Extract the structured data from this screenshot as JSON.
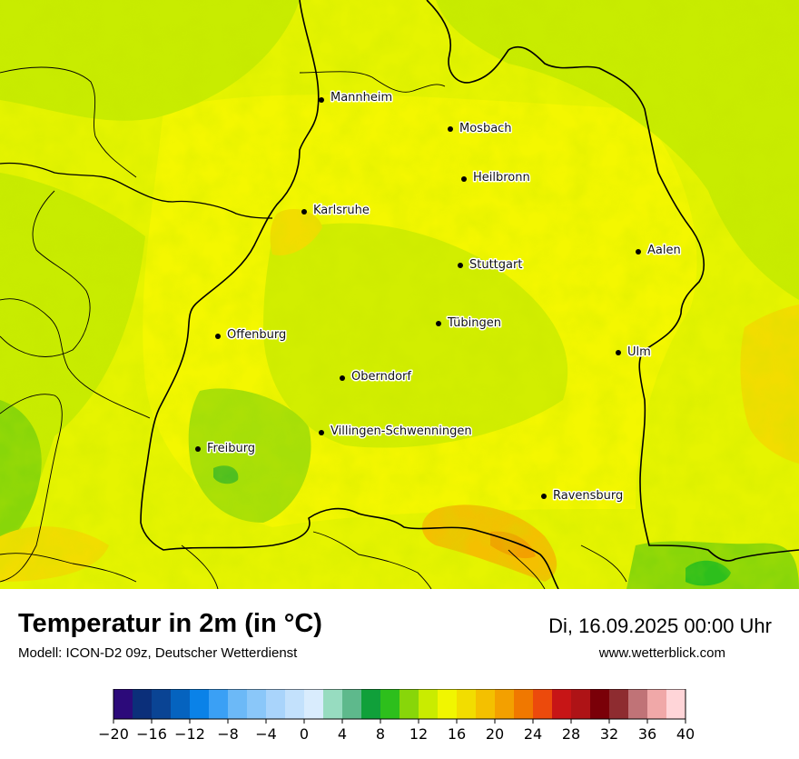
{
  "title": "Temperatur in 2m (in °C)",
  "subtitle": "Modell: ICON-D2 09z, Deutscher Wetterdienst",
  "datetime": "Di, 16.09.2025 00:00 Uhr",
  "website": "www.wetterblick.com",
  "cities": [
    {
      "name": "Mannheim"
    },
    {
      "name": "Mosbach"
    },
    {
      "name": "Heilbronn"
    },
    {
      "name": "Karlsruhe"
    },
    {
      "name": "Aalen"
    },
    {
      "name": "Stuttgart"
    },
    {
      "name": "Tübingen"
    },
    {
      "name": "Offenburg"
    },
    {
      "name": "Ulm"
    },
    {
      "name": "Oberndorf"
    },
    {
      "name": "Villingen-Schwenningen"
    },
    {
      "name": "Freiburg"
    },
    {
      "name": "Ravensburg"
    }
  ],
  "legend": {
    "ticks": [
      "−20",
      "−16",
      "−12",
      "−8",
      "−4",
      "0",
      "4",
      "8",
      "12",
      "16",
      "20",
      "24",
      "28",
      "32",
      "36",
      "40"
    ],
    "colors": [
      "#2c0a7a",
      "#0b2f7a",
      "#0a4494",
      "#0563bf",
      "#0a82e8",
      "#3aa0f5",
      "#6cb9f7",
      "#8ac7f9",
      "#a9d4fb",
      "#c3e1fc",
      "#d9ecfd",
      "#97dcc0",
      "#5eb98c",
      "#10a03a",
      "#2dbf1c",
      "#88d609",
      "#c9ec00",
      "#f1f600",
      "#f2dd00",
      "#f4c000",
      "#f3a000",
      "#f07800",
      "#ec4a0c",
      "#c71516",
      "#ae1316",
      "#7a0008",
      "#8e2c30",
      "#c07377",
      "#f0a8a8",
      "#ffd5d8"
    ]
  }
}
